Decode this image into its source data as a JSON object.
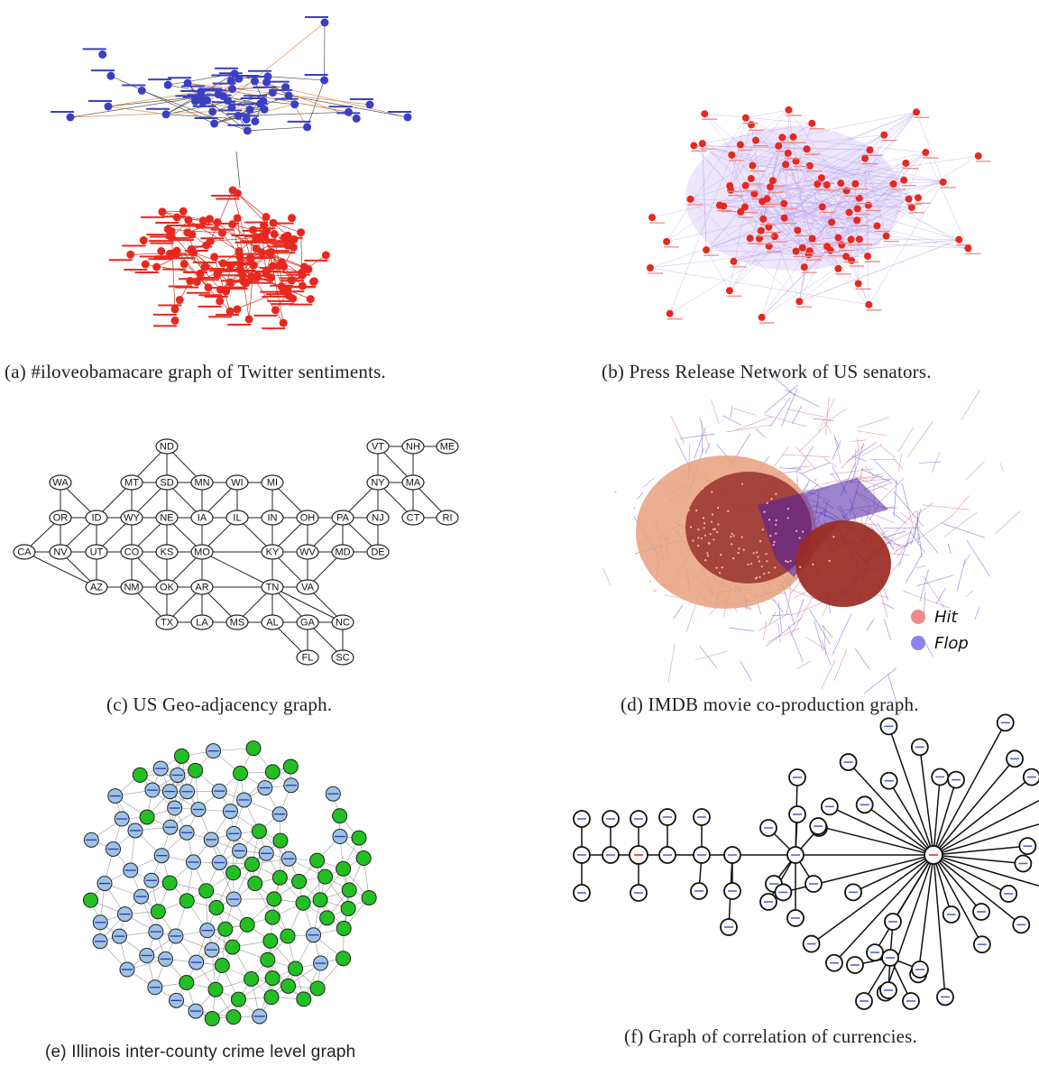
{
  "captions": {
    "a": "(a) #iloveobamacare graph of Twitter sentiments.",
    "b": "(b) Press Release Network of US senators.",
    "c": "(c) US Geo-adjacency graph.",
    "d": "(d) IMDB movie co-production graph.",
    "e": "(e) Illinois inter-county crime level graph",
    "f": "(f) Graph of correlation of currencies."
  },
  "colors": {
    "twitter_positive": "#3a3fc4",
    "twitter_negative": "#e8281e",
    "senator_node": "#e8281e",
    "senator_edge": "#b9a4e8",
    "hit": "#f08a8a",
    "flop": "#8a84ee",
    "illinois_low": "#9cc3e6",
    "illinois_high": "#22c022"
  },
  "legend_d": [
    {
      "label": "Hit",
      "color": "#f08a8a"
    },
    {
      "label": "Flop",
      "color": "#8a84ee"
    }
  ],
  "geo_graph": {
    "nodes": [
      "ND",
      "WA",
      "MT",
      "SD",
      "MN",
      "WI",
      "MI",
      "VT",
      "NH",
      "ME",
      "NY",
      "MA",
      "OR",
      "ID",
      "WY",
      "NE",
      "IA",
      "IL",
      "IN",
      "OH",
      "PA",
      "NJ",
      "CT",
      "RI",
      "CA",
      "NV",
      "UT",
      "CO",
      "KS",
      "MO",
      "KY",
      "WV",
      "MD",
      "DE",
      "AZ",
      "NM",
      "OK",
      "AR",
      "TN",
      "VA",
      "TX",
      "LA",
      "MS",
      "AL",
      "GA",
      "NC",
      "FL",
      "SC"
    ],
    "edges": [
      [
        "ND",
        "MT"
      ],
      [
        "ND",
        "SD"
      ],
      [
        "ND",
        "MN"
      ],
      [
        "WA",
        "OR"
      ],
      [
        "WA",
        "ID"
      ],
      [
        "MT",
        "SD"
      ],
      [
        "SD",
        "MN"
      ],
      [
        "MN",
        "WI"
      ],
      [
        "WI",
        "MI"
      ],
      [
        "MT",
        "ID"
      ],
      [
        "MT",
        "WY"
      ],
      [
        "SD",
        "WY"
      ],
      [
        "SD",
        "NE"
      ],
      [
        "SD",
        "IA"
      ],
      [
        "MN",
        "IA"
      ],
      [
        "WI",
        "IA"
      ],
      [
        "WI",
        "IL"
      ],
      [
        "MI",
        "IN"
      ],
      [
        "MI",
        "OH"
      ],
      [
        "OR",
        "ID"
      ],
      [
        "ID",
        "WY"
      ],
      [
        "WY",
        "NE"
      ],
      [
        "NE",
        "IA"
      ],
      [
        "IA",
        "IL"
      ],
      [
        "IL",
        "IN"
      ],
      [
        "IN",
        "OH"
      ],
      [
        "OH",
        "PA"
      ],
      [
        "PA",
        "NJ"
      ],
      [
        "OR",
        "CA"
      ],
      [
        "OR",
        "NV"
      ],
      [
        "ID",
        "NV"
      ],
      [
        "ID",
        "UT"
      ],
      [
        "WY",
        "UT"
      ],
      [
        "WY",
        "CO"
      ],
      [
        "NE",
        "CO"
      ],
      [
        "NE",
        "KS"
      ],
      [
        "NE",
        "MO"
      ],
      [
        "IA",
        "MO"
      ],
      [
        "IL",
        "MO"
      ],
      [
        "IL",
        "KY"
      ],
      [
        "IN",
        "KY"
      ],
      [
        "OH",
        "KY"
      ],
      [
        "OH",
        "WV"
      ],
      [
        "PA",
        "WV"
      ],
      [
        "PA",
        "MD"
      ],
      [
        "PA",
        "DE"
      ],
      [
        "NJ",
        "DE"
      ],
      [
        "CA",
        "NV"
      ],
      [
        "NV",
        "UT"
      ],
      [
        "UT",
        "CO"
      ],
      [
        "CO",
        "KS"
      ],
      [
        "KS",
        "MO"
      ],
      [
        "MO",
        "KY"
      ],
      [
        "KY",
        "WV"
      ],
      [
        "WV",
        "MD"
      ],
      [
        "MD",
        "DE"
      ],
      [
        "CA",
        "AZ"
      ],
      [
        "NV",
        "AZ"
      ],
      [
        "UT",
        "AZ"
      ],
      [
        "CO",
        "NM"
      ],
      [
        "CO",
        "OK"
      ],
      [
        "KS",
        "OK"
      ],
      [
        "MO",
        "OK"
      ],
      [
        "MO",
        "AR"
      ],
      [
        "MO",
        "TN"
      ],
      [
        "KY",
        "TN"
      ],
      [
        "KY",
        "VA"
      ],
      [
        "WV",
        "VA"
      ],
      [
        "MD",
        "VA"
      ],
      [
        "AZ",
        "NM"
      ],
      [
        "NM",
        "OK"
      ],
      [
        "NM",
        "TX"
      ],
      [
        "OK",
        "TX"
      ],
      [
        "OK",
        "AR"
      ],
      [
        "AR",
        "TX"
      ],
      [
        "AR",
        "LA"
      ],
      [
        "AR",
        "MS"
      ],
      [
        "AR",
        "TN"
      ],
      [
        "TN",
        "VA"
      ],
      [
        "TN",
        "MS"
      ],
      [
        "TN",
        "AL"
      ],
      [
        "TN",
        "GA"
      ],
      [
        "TN",
        "NC"
      ],
      [
        "VA",
        "NC"
      ],
      [
        "TX",
        "LA"
      ],
      [
        "LA",
        "MS"
      ],
      [
        "MS",
        "AL"
      ],
      [
        "AL",
        "GA"
      ],
      [
        "GA",
        "NC"
      ],
      [
        "AL",
        "FL"
      ],
      [
        "GA",
        "FL"
      ],
      [
        "GA",
        "SC"
      ],
      [
        "NC",
        "SC"
      ],
      [
        "VT",
        "NH"
      ],
      [
        "NH",
        "ME"
      ],
      [
        "VT",
        "NY"
      ],
      [
        "VT",
        "MA"
      ],
      [
        "NH",
        "MA"
      ],
      [
        "NY",
        "MA"
      ],
      [
        "NY",
        "PA"
      ],
      [
        "NY",
        "NJ"
      ],
      [
        "NY",
        "CT"
      ],
      [
        "MA",
        "CT"
      ],
      [
        "MA",
        "RI"
      ],
      [
        "CT",
        "RI"
      ]
    ]
  }
}
